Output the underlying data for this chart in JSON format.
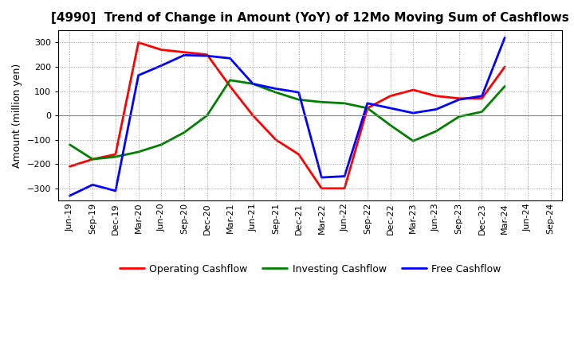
{
  "title": "[4990]  Trend of Change in Amount (YoY) of 12Mo Moving Sum of Cashflows",
  "ylabel": "Amount (million yen)",
  "x_labels": [
    "Jun-19",
    "Sep-19",
    "Dec-19",
    "Mar-20",
    "Jun-20",
    "Sep-20",
    "Dec-20",
    "Mar-21",
    "Jun-21",
    "Sep-21",
    "Dec-21",
    "Mar-22",
    "Jun-22",
    "Sep-22",
    "Dec-22",
    "Mar-23",
    "Jun-23",
    "Sep-23",
    "Dec-23",
    "Mar-24",
    "Jun-24",
    "Sep-24"
  ],
  "operating": [
    -210,
    -180,
    -160,
    300,
    270,
    260,
    250,
    120,
    0,
    -100,
    -160,
    -300,
    -300,
    30,
    80,
    105,
    80,
    70,
    70,
    200,
    null,
    null
  ],
  "investing": [
    -120,
    -180,
    -170,
    -150,
    -120,
    -70,
    0,
    145,
    130,
    95,
    65,
    55,
    50,
    30,
    -40,
    -105,
    -65,
    -5,
    15,
    120,
    null,
    null
  ],
  "free": [
    -330,
    -285,
    -310,
    165,
    205,
    248,
    245,
    235,
    130,
    110,
    95,
    -255,
    -250,
    50,
    30,
    10,
    25,
    65,
    80,
    320,
    null,
    null
  ],
  "ylim": [
    -350,
    350
  ],
  "yticks": [
    -300,
    -200,
    -100,
    0,
    100,
    200,
    300
  ],
  "colors": {
    "operating": "#ff0000",
    "investing": "#008000",
    "free": "#0000ff"
  },
  "legend_labels": [
    "Operating Cashflow",
    "Investing Cashflow",
    "Free Cashflow"
  ],
  "background_color": "#ffffff",
  "grid_color": "#aaaaaa",
  "linewidth": 2.0,
  "title_fontsize": 11,
  "axis_fontsize": 9,
  "tick_fontsize": 8,
  "legend_fontsize": 9
}
